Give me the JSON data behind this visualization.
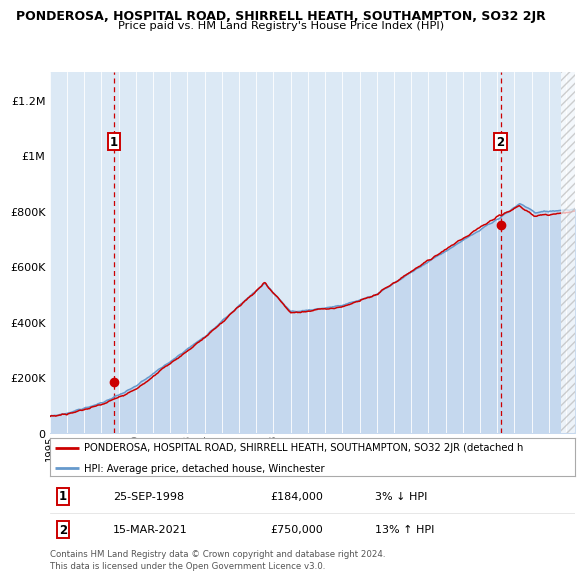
{
  "title": "PONDEROSA, HOSPITAL ROAD, SHIRRELL HEATH, SOUTHAMPTON, SO32 2JR",
  "subtitle": "Price paid vs. HM Land Registry's House Price Index (HPI)",
  "legend_line1": "PONDEROSA, HOSPITAL ROAD, SHIRRELL HEATH, SOUTHAMPTON, SO32 2JR (detached h",
  "legend_line2": "HPI: Average price, detached house, Winchester",
  "footer": "Contains HM Land Registry data © Crown copyright and database right 2024.\nThis data is licensed under the Open Government Licence v3.0.",
  "sale1_date": "25-SEP-1998",
  "sale1_price": 184000,
  "sale1_pct": "3% ↓ HPI",
  "sale2_date": "15-MAR-2021",
  "sale2_price": 750000,
  "sale2_pct": "13% ↑ HPI",
  "xmin": 1995.0,
  "xmax": 2025.5,
  "ymin": 0,
  "ymax": 1300000,
  "sale1_x": 1998.73,
  "sale2_x": 2021.2,
  "background_color": "#dce9f5",
  "red_line_color": "#cc0000",
  "blue_line_color": "#6699cc",
  "sale_dot_color": "#cc0000",
  "dashed_line_color": "#cc0000",
  "grid_color": "#ffffff",
  "fill_color": "#c5d8ee"
}
